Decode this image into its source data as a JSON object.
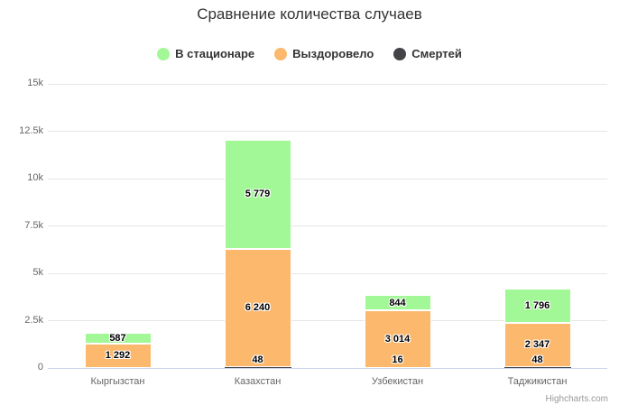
{
  "chart_data": {
    "type": "bar",
    "stacked": true,
    "title": "Сравнение количества случаев",
    "categories": [
      "Кыргызстан",
      "Казахстан",
      "Узбекистан",
      "Таджикистан"
    ],
    "series": [
      {
        "name": "Смертей",
        "color": "#434348",
        "values": [
          null,
          48,
          16,
          48
        ]
      },
      {
        "name": "Выздоровело",
        "color": "#fcb86c",
        "values": [
          1292,
          6240,
          3014,
          2347
        ]
      },
      {
        "name": "В стационаре",
        "color": "#a2f797",
        "values": [
          587,
          5779,
          844,
          1796
        ]
      }
    ],
    "data_labels": {
      "Смертей": [
        null,
        "48",
        "16",
        "48"
      ],
      "Выздоровело": [
        "1 292",
        "6 240",
        "3 014",
        "2 347"
      ],
      "В стационаре": [
        "587",
        "5 779",
        "844",
        "1 796"
      ]
    },
    "yticks": [
      "0",
      "2.5k",
      "5k",
      "7.5k",
      "10k",
      "12.5k",
      "15k"
    ],
    "ylim": [
      0,
      15000
    ],
    "xlabel": "",
    "ylabel": "",
    "grid": true,
    "legend_position": "top",
    "legend_order": [
      "В стационаре",
      "Выздоровело",
      "Смертей"
    ]
  },
  "colors": {
    "grid": "#e6e6e6",
    "axis_line": "#ccd6eb",
    "title_text": "#333333",
    "axis_text": "#666666",
    "credit_text": "#999999"
  },
  "credit": "Highcharts.com"
}
